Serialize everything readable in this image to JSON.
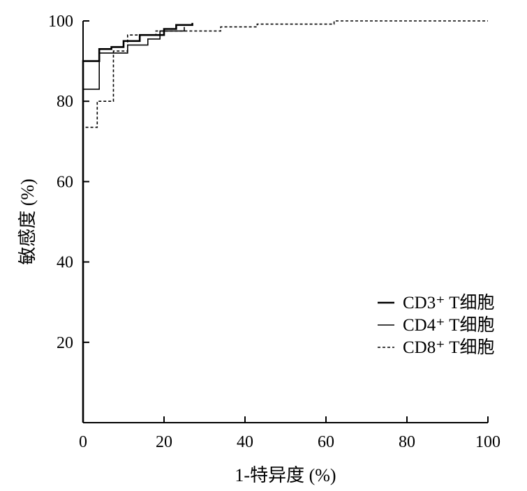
{
  "chart_data": {
    "type": "line",
    "xlabel": "1-特异度 (%)",
    "ylabel": "敏感度 (%)",
    "xlim": [
      0,
      100
    ],
    "ylim": [
      0,
      100
    ],
    "xticks": [
      0,
      20,
      40,
      60,
      80,
      100
    ],
    "yticks": [
      20,
      40,
      60,
      80,
      100
    ],
    "grid": false,
    "legend_position": "right",
    "series": [
      {
        "name": "CD3⁺ T细胞",
        "style": "solid-bold",
        "points": [
          [
            0,
            0
          ],
          [
            0,
            90
          ],
          [
            4,
            90
          ],
          [
            4,
            93
          ],
          [
            7,
            93
          ],
          [
            7,
            93.5
          ],
          [
            10,
            93.5
          ],
          [
            10,
            95
          ],
          [
            14,
            95
          ],
          [
            14,
            96.5
          ],
          [
            20,
            96.5
          ],
          [
            20,
            98
          ],
          [
            23,
            98
          ],
          [
            23,
            99
          ],
          [
            27,
            99
          ],
          [
            27,
            99.5
          ]
        ]
      },
      {
        "name": "CD4⁺ T细胞",
        "style": "solid",
        "points": [
          [
            0,
            0
          ],
          [
            0,
            83
          ],
          [
            4,
            83
          ],
          [
            4,
            92
          ],
          [
            11,
            92
          ],
          [
            11,
            94
          ],
          [
            16,
            94
          ],
          [
            16,
            95.5
          ],
          [
            19,
            95.5
          ],
          [
            19,
            97.5
          ],
          [
            25,
            97.5
          ],
          [
            25,
            98.5
          ]
        ]
      },
      {
        "name": "CD8⁺ T细胞",
        "style": "dashed",
        "points": [
          [
            0,
            0
          ],
          [
            0,
            73.5
          ],
          [
            3.5,
            73.5
          ],
          [
            3.5,
            80
          ],
          [
            7.5,
            80
          ],
          [
            7.5,
            92.5
          ],
          [
            11,
            92.5
          ],
          [
            11,
            96.5
          ],
          [
            18,
            96.5
          ],
          [
            18,
            97.5
          ],
          [
            34,
            97.5
          ],
          [
            34,
            98.5
          ],
          [
            43,
            98.5
          ],
          [
            43,
            99.2
          ],
          [
            62,
            99.2
          ],
          [
            62,
            100
          ],
          [
            100,
            100
          ]
        ]
      }
    ]
  }
}
